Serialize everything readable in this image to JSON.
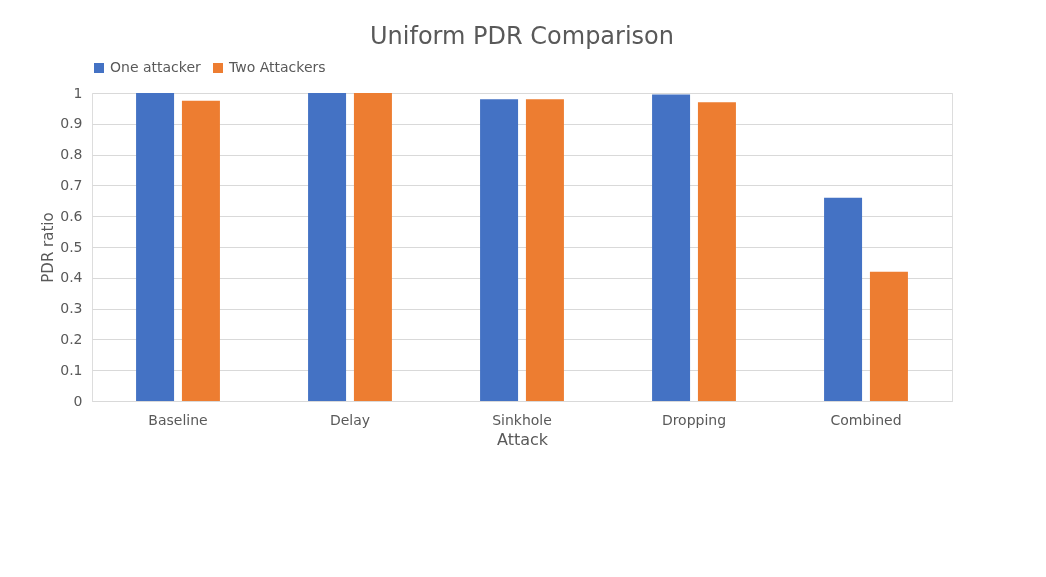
{
  "chart_data": {
    "type": "bar",
    "title": "Uniform PDR Comparison",
    "xlabel": "Attack",
    "ylabel": "PDR ratio",
    "categories": [
      "Baseline",
      "Delay",
      "Sinkhole",
      "Dropping",
      "Combined"
    ],
    "series": [
      {
        "name": "One attacker",
        "color": "#4472c4",
        "values": [
          1.0,
          1.0,
          0.98,
          0.995,
          0.66
        ]
      },
      {
        "name": "Two Attackers",
        "color": "#ed7d31",
        "values": [
          0.975,
          1.0,
          0.98,
          0.97,
          0.42
        ]
      }
    ],
    "ylim": [
      0,
      1
    ],
    "yticks": [
      0,
      0.1,
      0.2,
      0.3,
      0.4,
      0.5,
      0.6,
      0.7,
      0.8,
      0.9,
      {
        "value": 1,
        "label": "1"
      }
    ],
    "grid": "y",
    "legend": "top"
  }
}
